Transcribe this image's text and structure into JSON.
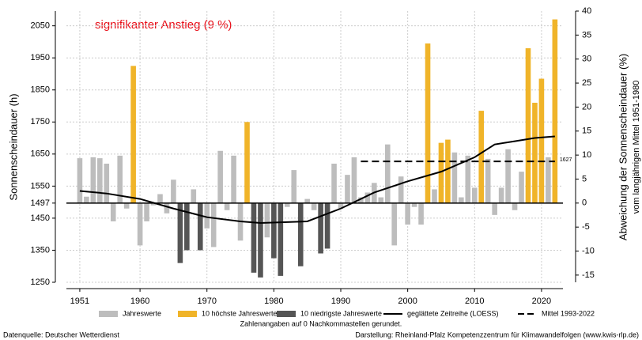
{
  "chart_data": {
    "type": "bar",
    "title": "signifikanter Anstieg (9 %)",
    "y_label": "Sonnenscheindauer (h)",
    "y2_label": [
      "Abweichung der Sonnenscheindauer (%)",
      "vom langjährigen Mittel 1951-1980"
    ],
    "note": "Zahlenangaben auf 0 Nachkommastellen gerundet.",
    "source": "Datenquelle: Deutscher Wetterdienst",
    "credit": "Darstellung: Rheinland-Pfalz Kompetenzzentrum für Klimawandelfolgen (www.kwis-rlp.de)",
    "baseline": 1497,
    "x": [
      1951,
      1952,
      1953,
      1954,
      1955,
      1956,
      1957,
      1958,
      1959,
      1960,
      1961,
      1962,
      1963,
      1964,
      1965,
      1966,
      1967,
      1968,
      1969,
      1970,
      1971,
      1972,
      1973,
      1974,
      1975,
      1976,
      1977,
      1978,
      1979,
      1980,
      1981,
      1982,
      1983,
      1984,
      1985,
      1986,
      1987,
      1988,
      1989,
      1990,
      1991,
      1992,
      1993,
      1994,
      1995,
      1996,
      1997,
      1998,
      1999,
      2000,
      2001,
      2002,
      2003,
      2004,
      2005,
      2006,
      2007,
      2008,
      2009,
      2010,
      2011,
      2012,
      2013,
      2014,
      2015,
      2016,
      2017,
      2018,
      2019,
      2020,
      2021,
      2022
    ],
    "series": [
      {
        "name": "Jahreswerte",
        "type": "bar",
        "color": "#bdbdbd",
        "values": [
          1637,
          1517,
          1640,
          1637,
          1620,
          1440,
          1645,
          1480,
          null,
          1365,
          1440,
          1490,
          1525,
          1465,
          1570,
          null,
          null,
          1540,
          null,
          1418,
          1360,
          1660,
          1475,
          1645,
          1380,
          null,
          null,
          null,
          1390,
          null,
          null,
          1485,
          1600,
          null,
          1510,
          1475,
          null,
          null,
          1620,
          1480,
          1585,
          1640,
          1515,
          1530,
          1560,
          1515,
          1680,
          1365,
          1580,
          1430,
          1485,
          1430,
          null,
          1540,
          null,
          null,
          1655,
          1515,
          1645,
          1545,
          null,
          1635,
          1460,
          1545,
          1665,
          1475,
          1595,
          null,
          null,
          null,
          1640,
          null
        ]
      },
      {
        "name": "10 höchste Jahreswerte",
        "type": "bar",
        "color": "#f0b429",
        "values": [
          null,
          null,
          null,
          null,
          null,
          null,
          null,
          null,
          1925,
          null,
          null,
          null,
          null,
          null,
          null,
          null,
          null,
          null,
          null,
          null,
          null,
          null,
          null,
          null,
          null,
          1750,
          null,
          null,
          null,
          null,
          null,
          null,
          null,
          null,
          null,
          null,
          null,
          null,
          null,
          null,
          null,
          null,
          null,
          null,
          null,
          null,
          null,
          null,
          null,
          null,
          null,
          null,
          1995,
          null,
          1685,
          1695,
          null,
          null,
          null,
          null,
          1785,
          null,
          null,
          null,
          null,
          null,
          null,
          1980,
          1810,
          1885,
          null,
          2070
        ]
      },
      {
        "name": "10 niedrigste Jahreswerte",
        "type": "bar",
        "color": "#555555",
        "values": [
          null,
          null,
          null,
          null,
          null,
          null,
          null,
          null,
          null,
          null,
          null,
          null,
          null,
          null,
          null,
          1310,
          1350,
          null,
          1350,
          null,
          null,
          null,
          null,
          null,
          null,
          null,
          1280,
          1265,
          null,
          1325,
          1270,
          null,
          null,
          1300,
          null,
          null,
          1340,
          1355,
          null,
          null,
          null,
          null,
          null,
          null,
          null,
          null,
          null,
          null,
          null,
          null,
          null,
          null,
          null,
          null,
          null,
          null,
          null,
          null,
          null,
          null,
          null,
          null,
          null,
          null,
          null,
          null,
          null,
          null,
          null,
          null,
          null,
          null
        ]
      },
      {
        "name": "geglättete Zeitreihe (LOESS)",
        "type": "line",
        "color": "#000000",
        "x": [
          1951,
          1955,
          1960,
          1965,
          1970,
          1975,
          1978,
          1985,
          1990,
          1995,
          2000,
          2005,
          2010,
          2013,
          2016,
          2019,
          2022
        ],
        "values": [
          1535,
          1527,
          1510,
          1480,
          1453,
          1440,
          1435,
          1440,
          1480,
          1530,
          1565,
          1595,
          1640,
          1680,
          1690,
          1700,
          1705
        ]
      },
      {
        "name": "Mittel 1993-2022",
        "type": "dash",
        "color": "#000000",
        "x": [
          1993,
          2022
        ],
        "values": [
          1627,
          1627
        ]
      }
    ],
    "xlim": [
      1949,
      2023.2
    ],
    "ylim": [
      1250,
      2096
    ],
    "y2lim": [
      -16.5,
      40
    ],
    "xticks": [
      1951,
      1960,
      1970,
      1980,
      1990,
      2000,
      2010,
      2020
    ],
    "yticks": [
      1250,
      1350,
      1450,
      1497,
      1550,
      1650,
      1750,
      1850,
      1950,
      2050
    ],
    "y2ticks": [
      -15,
      -10,
      -5,
      0,
      5,
      10,
      15,
      20,
      25,
      30,
      35,
      40
    ],
    "grid": true
  }
}
